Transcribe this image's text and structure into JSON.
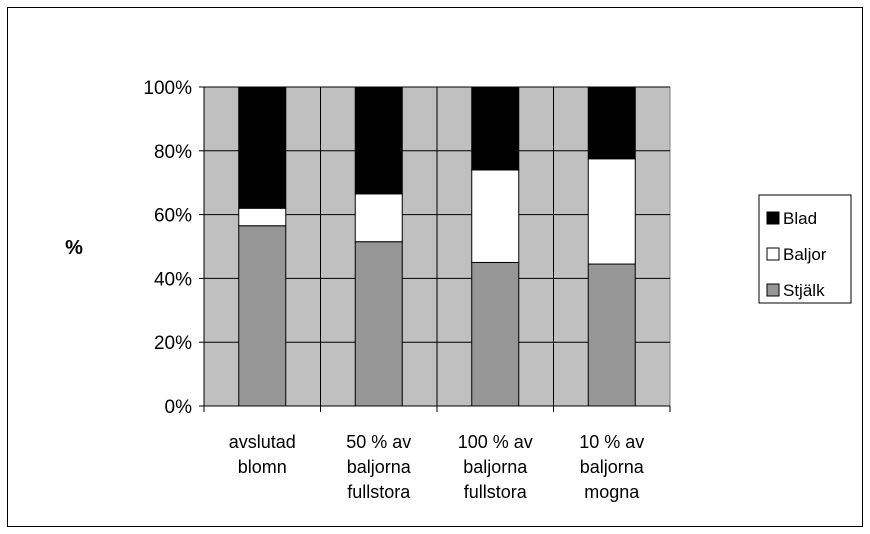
{
  "chart_data": {
    "type": "bar",
    "stacked": true,
    "percent_stacked": true,
    "categories": [
      [
        "avslutad",
        "blomn"
      ],
      [
        "50 % av",
        "baljorna",
        "fullstora"
      ],
      [
        "100 % av",
        "baljorna",
        "fullstora"
      ],
      [
        "10 % av",
        "baljorna",
        "mogna"
      ]
    ],
    "series": [
      {
        "name": "Stjälk",
        "values": [
          56.5,
          51.5,
          45,
          44.5
        ],
        "color": "#969696"
      },
      {
        "name": "Baljor",
        "values": [
          5.5,
          15,
          29,
          33
        ],
        "color": "#ffffff"
      },
      {
        "name": "Blad",
        "values": [
          38,
          33.5,
          26,
          22.5
        ],
        "color": "#000000"
      }
    ],
    "legend_order": [
      "Blad",
      "Baljor",
      "Stjälk"
    ],
    "ylabel": "%",
    "ylim": [
      0,
      100
    ],
    "yticks": [
      "0%",
      "20%",
      "40%",
      "60%",
      "80%",
      "100%"
    ],
    "grid": true,
    "plot_background": "#c0c0c0",
    "legend_position": "right"
  }
}
